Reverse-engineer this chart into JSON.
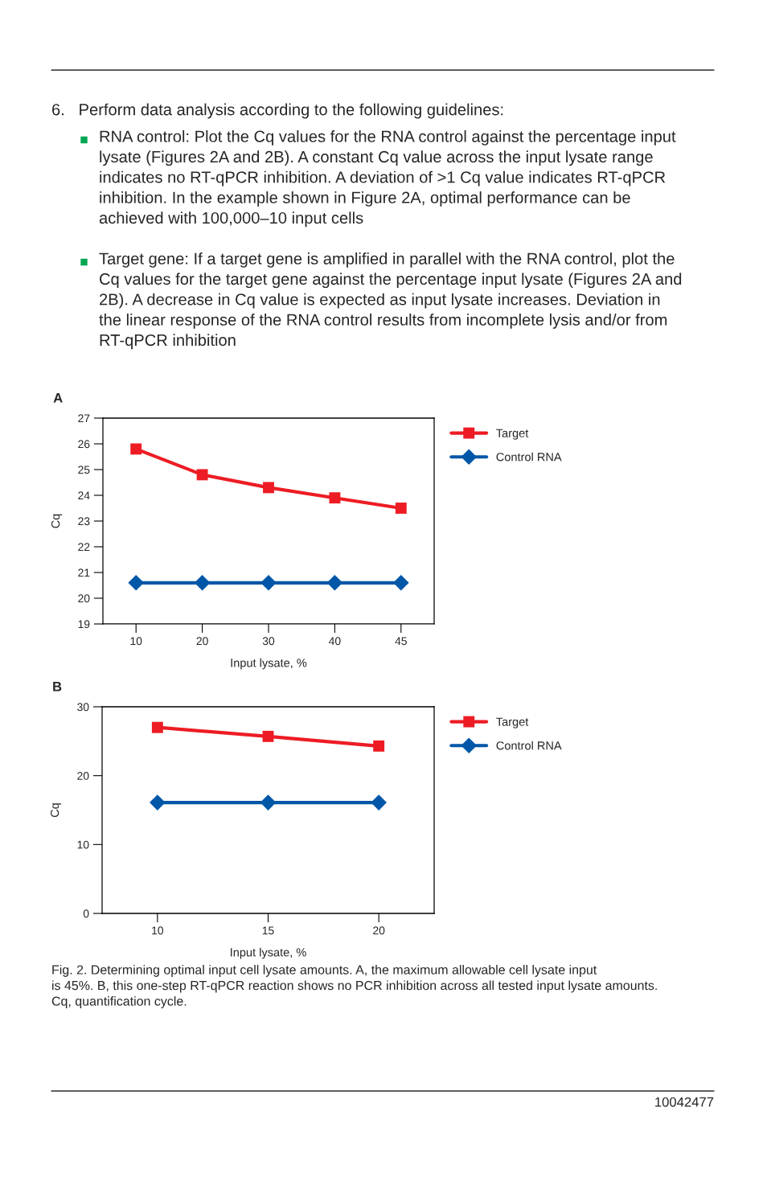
{
  "chart_data": [
    {
      "type": "line",
      "title": "A",
      "xlabel": "Input lysate, %",
      "ylabel": "Cq",
      "categories": [
        "10",
        "20",
        "30",
        "40",
        "45"
      ],
      "series": [
        {
          "name": "Target",
          "color": "#ed1c24",
          "marker": "square",
          "values": [
            25.8,
            24.8,
            24.3,
            23.9,
            23.5
          ]
        },
        {
          "name": "Control RNA",
          "color": "#0057a8",
          "marker": "diamond",
          "values": [
            20.6,
            20.6,
            20.6,
            20.6,
            20.6
          ]
        }
      ],
      "ylim": [
        19,
        27
      ],
      "yticks": [
        19,
        20,
        21,
        22,
        23,
        24,
        25,
        26,
        27
      ],
      "grid": false,
      "legend": "top right",
      "line_style": "solid",
      "annotations": [
        "6.   Perform data analysis according to the following guidelines:",
        "RNA control: Plot the Cq values for the RNA control against the percentage input\nlysate (Figures 2A and 2B). A constant Cq value across the input lysate range\nindicates no RT-qPCR inhibition. A deviation of >1 Cq value indicates RT-qPCR\ninhibition. In the example shown in Figure 2A, optimal performance can be\nachieved with 100,000–10 input cells",
        "Target gene: If a target gene is amplified in parallel with the RNA control, plot the\nCq values for the target gene against the percentage input lysate (Figures 2A and\n2B). A decrease in Cq value is expected as input lysate increases. Deviation in\nthe linear response of the RNA control results from incomplete lysis and/or from\nRT-qPCR inhibition"
      ]
    },
    {
      "type": "line",
      "title": "B",
      "xlabel": "Input lysate, %",
      "ylabel": "Cq",
      "categories": [
        "10",
        "15",
        "20"
      ],
      "series": [
        {
          "name": "Target",
          "color": "#ed1c24",
          "marker": "square",
          "values": [
            27.0,
            25.7,
            24.3
          ]
        },
        {
          "name": "Control RNA",
          "color": "#0057a8",
          "marker": "diamond",
          "values": [
            16.1,
            16.1,
            16.1
          ]
        }
      ],
      "ylim": [
        0,
        30
      ],
      "yticks": [
        0,
        10,
        20,
        30
      ],
      "grid": false,
      "legend": "top right",
      "line_style": "solid",
      "annotations": [
        "Fig. 2. Determining optimal input cell lysate amounts. A, the maximum allowable cell lysate input\nis 45%. B, this one-step RT-qPCR reaction shows no PCR inhibition across all tested input lysate amounts.\nCq, quantification cycle.",
        "10042477"
      ]
    }
  ]
}
